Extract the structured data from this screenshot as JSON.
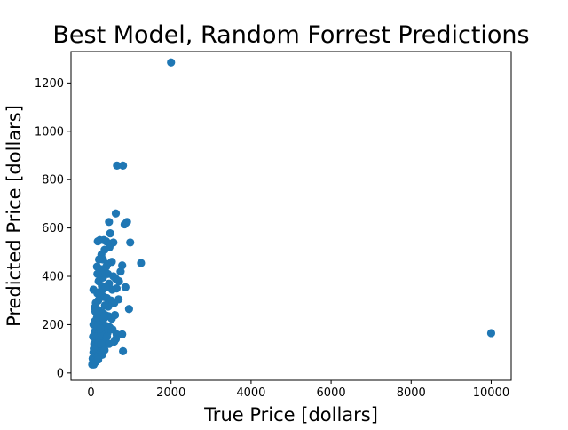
{
  "chart_data": {
    "type": "scatter",
    "title": "Best Model, Random Forrest Predictions",
    "xlabel": "True Price [dollars]",
    "ylabel": "Predicted Price [dollars]",
    "xlim": [
      -500,
      10500
    ],
    "ylim": [
      -30,
      1330
    ],
    "xticks": [
      0,
      2000,
      4000,
      6000,
      8000,
      10000
    ],
    "yticks": [
      0,
      200,
      400,
      600,
      800,
      1000,
      1200
    ],
    "marker_color": "#1f77b4",
    "grid": false,
    "legend": "none",
    "series": [
      {
        "points": [
          [
            2000,
            1285
          ],
          [
            10000,
            165
          ],
          [
            650,
            858
          ],
          [
            800,
            858
          ],
          [
            620,
            660
          ],
          [
            900,
            625
          ],
          [
            840,
            615
          ],
          [
            450,
            625
          ],
          [
            980,
            540
          ],
          [
            170,
            545
          ],
          [
            220,
            550
          ],
          [
            320,
            550
          ],
          [
            380,
            545
          ],
          [
            500,
            535
          ],
          [
            560,
            540
          ],
          [
            480,
            578
          ],
          [
            1250,
            455
          ],
          [
            780,
            445
          ],
          [
            740,
            420
          ],
          [
            520,
            460
          ],
          [
            410,
            450
          ],
          [
            260,
            490
          ],
          [
            300,
            470
          ],
          [
            200,
            470
          ],
          [
            150,
            440
          ],
          [
            230,
            430
          ],
          [
            350,
            420
          ],
          [
            420,
            410
          ],
          [
            560,
            400
          ],
          [
            620,
            390
          ],
          [
            700,
            380
          ],
          [
            860,
            355
          ],
          [
            640,
            350
          ],
          [
            60,
            345
          ],
          [
            160,
            330
          ],
          [
            240,
            320
          ],
          [
            320,
            315
          ],
          [
            400,
            310
          ],
          [
            500,
            300
          ],
          [
            580,
            290
          ],
          [
            690,
            305
          ],
          [
            950,
            265
          ],
          [
            180,
            300
          ],
          [
            120,
            290
          ],
          [
            90,
            270
          ],
          [
            200,
            260
          ],
          [
            280,
            250
          ],
          [
            360,
            240
          ],
          [
            440,
            235
          ],
          [
            520,
            225
          ],
          [
            600,
            240
          ],
          [
            150,
            230
          ],
          [
            100,
            215
          ],
          [
            60,
            200
          ],
          [
            230,
            210
          ],
          [
            300,
            205
          ],
          [
            380,
            195
          ],
          [
            460,
            190
          ],
          [
            540,
            180
          ],
          [
            640,
            160
          ],
          [
            780,
            160
          ],
          [
            170,
            175
          ],
          [
            90,
            170
          ],
          [
            50,
            150
          ],
          [
            130,
            150
          ],
          [
            210,
            145
          ],
          [
            290,
            140
          ],
          [
            370,
            130
          ],
          [
            450,
            120
          ],
          [
            80,
            120
          ],
          [
            150,
            110
          ],
          [
            230,
            105
          ],
          [
            310,
            100
          ],
          [
            120,
            90
          ],
          [
            60,
            85
          ],
          [
            200,
            80
          ],
          [
            280,
            75
          ],
          [
            90,
            70
          ],
          [
            40,
            60
          ],
          [
            140,
            60
          ],
          [
            60,
            50
          ],
          [
            110,
            45
          ],
          [
            40,
            40
          ],
          [
            70,
            35
          ],
          [
            30,
            35
          ],
          [
            180,
            55
          ],
          [
            620,
            140
          ],
          [
            580,
            130
          ],
          [
            800,
            90
          ],
          [
            410,
            165
          ],
          [
            330,
            175
          ],
          [
            250,
            165
          ],
          [
            430,
            275
          ],
          [
            350,
            280
          ],
          [
            270,
            360
          ],
          [
            190,
            380
          ],
          [
            450,
            370
          ],
          [
            530,
            345
          ],
          [
            300,
            395
          ],
          [
            380,
            440
          ],
          [
            250,
            415
          ],
          [
            160,
            410
          ],
          [
            340,
            510
          ],
          [
            460,
            520
          ],
          [
            210,
            335
          ],
          [
            290,
            345
          ],
          [
            370,
            355
          ],
          [
            110,
            255
          ],
          [
            140,
            190
          ],
          [
            70,
            100
          ],
          [
            320,
            225
          ],
          [
            240,
            185
          ],
          [
            190,
            125
          ],
          [
            260,
            120
          ],
          [
            340,
            95
          ],
          [
            400,
            150
          ]
        ]
      }
    ]
  }
}
